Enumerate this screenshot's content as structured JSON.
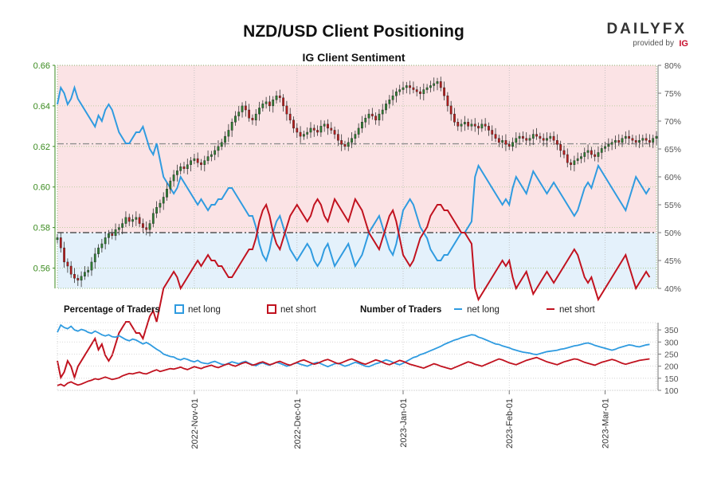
{
  "header": {
    "title": "NZD/USD Client Positioning",
    "subtitle": "IG Client Sentiment"
  },
  "branding": {
    "logo_text": "DAILYFX",
    "provided_by": "provided by",
    "ig": "IG"
  },
  "legend": {
    "percentage_heading": "Percentage of Traders",
    "percentage_long": "net long",
    "percentage_short": "net short",
    "number_heading": "Number of Traders",
    "number_long": "net long",
    "number_short": "net short"
  },
  "colors": {
    "long": "#2f9be0",
    "short": "#c1121f",
    "long_fill": "#e4f1fb",
    "short_fill": "#fbe3e5",
    "candle_up": "#2e7d32",
    "candle_down": "#b71c1c",
    "price_axis": "#3a8a1e"
  },
  "chart_data": [
    {
      "type": "candlestick+line",
      "name": "price-and-sentiment",
      "title": "NZD/USD Client Positioning",
      "subtitle": "IG Client Sentiment",
      "price_axis": {
        "side": "left",
        "ylim": [
          0.55,
          0.66
        ],
        "ticks": [
          "0.56",
          "0.58",
          "0.60",
          "0.62",
          "0.64",
          "0.66"
        ]
      },
      "percent_axis": {
        "side": "right",
        "ylim": [
          40,
          80
        ],
        "ticks": [
          "40%",
          "45%",
          "50%",
          "55%",
          "60%",
          "65%",
          "70%",
          "75%",
          "80%"
        ]
      },
      "reference_lines": {
        "percent_50": 50,
        "last_price": 0.6213
      },
      "x_range_days": [
        0,
        174
      ],
      "price_close": [
        0.575,
        0.57,
        0.563,
        0.561,
        0.557,
        0.555,
        0.554,
        0.556,
        0.558,
        0.559,
        0.563,
        0.567,
        0.57,
        0.572,
        0.575,
        0.577,
        0.576,
        0.579,
        0.58,
        0.582,
        0.585,
        0.583,
        0.584,
        0.585,
        0.582,
        0.58,
        0.579,
        0.582,
        0.587,
        0.59,
        0.592,
        0.595,
        0.599,
        0.603,
        0.606,
        0.608,
        0.61,
        0.609,
        0.611,
        0.613,
        0.614,
        0.612,
        0.611,
        0.613,
        0.615,
        0.616,
        0.618,
        0.62,
        0.622,
        0.625,
        0.628,
        0.632,
        0.635,
        0.637,
        0.64,
        0.638,
        0.634,
        0.633,
        0.636,
        0.639,
        0.641,
        0.642,
        0.64,
        0.643,
        0.645,
        0.644,
        0.64,
        0.636,
        0.633,
        0.629,
        0.627,
        0.625,
        0.626,
        0.627,
        0.629,
        0.628,
        0.627,
        0.63,
        0.631,
        0.629,
        0.628,
        0.626,
        0.623,
        0.621,
        0.62,
        0.622,
        0.624,
        0.626,
        0.629,
        0.632,
        0.634,
        0.636,
        0.635,
        0.633,
        0.636,
        0.638,
        0.641,
        0.643,
        0.645,
        0.647,
        0.648,
        0.649,
        0.65,
        0.649,
        0.648,
        0.647,
        0.646,
        0.648,
        0.649,
        0.65,
        0.651,
        0.652,
        0.649,
        0.645,
        0.64,
        0.636,
        0.632,
        0.63,
        0.631,
        0.632,
        0.63,
        0.631,
        0.63,
        0.629,
        0.631,
        0.63,
        0.628,
        0.626,
        0.624,
        0.622,
        0.623,
        0.621,
        0.62,
        0.622,
        0.624,
        0.625,
        0.624,
        0.623,
        0.624,
        0.626,
        0.625,
        0.624,
        0.623,
        0.624,
        0.625,
        0.623,
        0.621,
        0.618,
        0.616,
        0.612,
        0.611,
        0.613,
        0.614,
        0.615,
        0.617,
        0.618,
        0.616,
        0.615,
        0.617,
        0.619,
        0.62,
        0.621,
        0.622,
        0.623,
        0.622,
        0.624,
        0.625,
        0.624,
        0.623,
        0.622,
        0.623,
        0.624,
        0.623,
        0.622,
        0.624,
        0.625
      ],
      "net_long_pct": [
        73,
        76,
        75,
        73,
        74,
        76,
        74,
        73,
        72,
        71,
        70,
        69,
        71,
        70,
        72,
        73,
        72,
        70,
        68,
        67,
        66,
        66,
        67,
        68,
        68,
        69,
        67,
        65,
        64,
        66,
        63,
        60,
        59,
        58,
        57,
        58,
        60,
        59,
        58,
        57,
        56,
        55,
        56,
        55,
        54,
        55,
        55,
        56,
        56,
        57,
        58,
        58,
        57,
        56,
        55,
        54,
        53,
        53,
        51,
        48,
        46,
        45,
        47,
        50,
        52,
        53,
        51,
        49,
        47,
        46,
        45,
        46,
        47,
        48,
        47,
        45,
        44,
        45,
        47,
        48,
        46,
        44,
        45,
        46,
        47,
        48,
        46,
        44,
        45,
        46,
        48,
        50,
        51,
        52,
        53,
        51,
        49,
        47,
        46,
        48,
        51,
        54,
        55,
        56,
        55,
        53,
        51,
        50,
        49,
        47,
        46,
        45,
        45,
        46,
        46,
        47,
        48,
        49,
        50,
        50,
        51,
        52,
        60,
        62,
        61,
        60,
        59,
        58,
        57,
        56,
        55,
        56,
        55,
        58,
        60,
        59,
        58,
        57,
        59,
        61,
        60,
        59,
        58,
        57,
        58,
        59,
        58,
        57,
        56,
        55,
        54,
        53,
        54,
        56,
        58,
        59,
        58,
        60,
        62,
        61,
        60,
        59,
        58,
        57,
        56,
        55,
        54,
        56,
        58,
        60,
        59,
        58,
        57,
        58
      ],
      "net_long_pct_note": "values in percent; net short = 100 - net long (Percentage of Traders)",
      "x_ticks": [
        "2022-Nov-01",
        "2022-Dec-01",
        "2023-Jan-01",
        "2023-Feb-01",
        "2023-Mar-01"
      ]
    },
    {
      "type": "line",
      "name": "number-of-traders",
      "ylim": [
        100,
        380
      ],
      "y_ticks": [
        "100",
        "150",
        "200",
        "250",
        "300",
        "350"
      ],
      "series": [
        {
          "name": "net long",
          "values": [
            340,
            370,
            360,
            355,
            365,
            350,
            345,
            352,
            348,
            340,
            336,
            345,
            338,
            330,
            325,
            330,
            322,
            320,
            326,
            318,
            310,
            305,
            312,
            308,
            300,
            292,
            298,
            290,
            280,
            270,
            262,
            250,
            245,
            240,
            238,
            230,
            226,
            232,
            228,
            222,
            218,
            224,
            215,
            212,
            210,
            216,
            220,
            214,
            208,
            206,
            212,
            218,
            214,
            210,
            216,
            220,
            212,
            206,
            202,
            210,
            214,
            208,
            204,
            210,
            216,
            212,
            206,
            200,
            204,
            210,
            214,
            208,
            204,
            200,
            206,
            212,
            216,
            210,
            204,
            198,
            204,
            210,
            212,
            206,
            200,
            204,
            210,
            216,
            212,
            206,
            200,
            198,
            204,
            210,
            214,
            220,
            226,
            222,
            216,
            210,
            206,
            212,
            220,
            228,
            236,
            240,
            248,
            252,
            258,
            264,
            270,
            276,
            282,
            290,
            296,
            302,
            308,
            312,
            318,
            322,
            326,
            330,
            328,
            320,
            316,
            310,
            304,
            298,
            292,
            290,
            284,
            280,
            276,
            270,
            266,
            262,
            258,
            256,
            254,
            250,
            248,
            252,
            256,
            260,
            262,
            264,
            266,
            270,
            272,
            276,
            280,
            284,
            286,
            290,
            294,
            296,
            292,
            286,
            282,
            278,
            274,
            270,
            266,
            270,
            276,
            280,
            284,
            288,
            286,
            282,
            280,
            284,
            288,
            290
          ]
        },
        {
          "name": "net short",
          "values": [
            120,
            125,
            118,
            130,
            135,
            128,
            122,
            126,
            132,
            138,
            142,
            148,
            145,
            150,
            155,
            150,
            145,
            148,
            152,
            160,
            165,
            170,
            168,
            172,
            175,
            170,
            168,
            174,
            180,
            185,
            178,
            182,
            186,
            190,
            188,
            192,
            196,
            190,
            186,
            192,
            198,
            194,
            190,
            196,
            200,
            204,
            198,
            194,
            200,
            206,
            210,
            204,
            200,
            206,
            212,
            216,
            210,
            204,
            208,
            214,
            218,
            212,
            206,
            210,
            216,
            220,
            214,
            208,
            204,
            210,
            216,
            222,
            226,
            220,
            214,
            208,
            212,
            218,
            224,
            228,
            222,
            216,
            210,
            214,
            220,
            226,
            230,
            224,
            218,
            212,
            208,
            214,
            220,
            226,
            222,
            216,
            210,
            206,
            212,
            218,
            224,
            220,
            214,
            208,
            204,
            200,
            196,
            192,
            198,
            204,
            210,
            206,
            200,
            196,
            192,
            188,
            194,
            200,
            206,
            212,
            218,
            214,
            208,
            204,
            200,
            206,
            212,
            218,
            224,
            230,
            226,
            220,
            214,
            210,
            206,
            212,
            218,
            224,
            228,
            232,
            236,
            230,
            224,
            218,
            214,
            210,
            206,
            212,
            218,
            222,
            226,
            230,
            228,
            222,
            216,
            212,
            208,
            204,
            210,
            216,
            220,
            224,
            228,
            224,
            218,
            212,
            208,
            212,
            216,
            220,
            224,
            226,
            228,
            230
          ]
        }
      ],
      "x_ticks": [
        "2022-Nov-01",
        "2022-Dec-01",
        "2023-Jan-01",
        "2023-Feb-01",
        "2023-Mar-01"
      ]
    }
  ]
}
